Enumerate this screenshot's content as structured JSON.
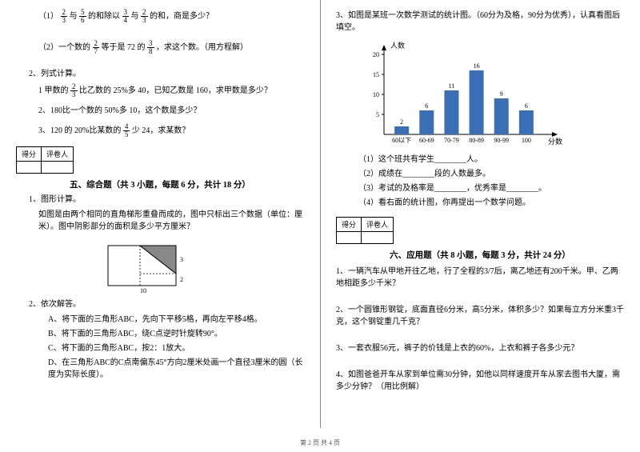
{
  "left": {
    "q1_1": "（1）",
    "q1_1_text_a": "与",
    "q1_1_text_b": "的和除以",
    "q1_1_text_c": "与",
    "q1_1_text_d": "的和，商是多少？",
    "q1_2": "（2）一个数的",
    "q1_2_b": "等于是 72 的",
    "q1_2_c": "，求这个数。（用方程解）",
    "q2": "2、列式计算。",
    "q2_1a": "1 甲数的",
    "q2_1b": "比乙数的 25%多 40，已知乙数是 160，求甲数是多少？",
    "q2_2": "2、180比一个数的 50%多 10，这个数是多少？",
    "q2_3a": "3、120 的 20%比某数的",
    "q2_3b": "少 24，求某数？",
    "section5_title": "五、综合题（共 3 小题，每题 6 分，共计 18 分）",
    "s5_q1": "1、图形计算。",
    "s5_q1_desc": "如图是由两个相同的直角梯形重叠而成的，图中只标出三个数据（单位：厘米）。图中阴影部分的面积是多少平方厘米？",
    "s5_q2": "2、依次解答。",
    "s5_q2_a": "A、将下面的三角形ABC，先向下平移5格，再向左平移4格。",
    "s5_q2_b": "B、将下面的三角形ABC，绕C点逆时针旋转90°。",
    "s5_q2_c": "C、将下面的三角形ABC，按2：1放大。",
    "s5_q2_d": "D、在三角形ABC的C点南偏东45°方向2厘米处画一个直径3厘米的圆（长度为实际长度）。",
    "trap": {
      "l1": "3",
      "l2": "2",
      "l3": "10"
    },
    "score_labels": {
      "score": "得分",
      "marker": "评卷人"
    },
    "fracs": {
      "a": {
        "n": "2",
        "d": "3"
      },
      "b": {
        "n": "5",
        "d": "6"
      },
      "c": {
        "n": "3",
        "d": "4"
      },
      "d": {
        "n": "2",
        "d": "3"
      },
      "e": {
        "n": "2",
        "d": "7"
      },
      "f": {
        "n": "3",
        "d": "8"
      },
      "g": {
        "n": "2",
        "d": "3"
      },
      "h": {
        "n": "4",
        "d": "5"
      }
    }
  },
  "right": {
    "q3": "3、如图是某班一次数学测试的统计图。（60分为及格，90分为优秀），认真看图后填空。",
    "chart": {
      "ylabel": "人数",
      "xlabel": "分数",
      "ymax": 20,
      "ytick": 5,
      "categories": [
        "60以下",
        "60-69",
        "70-79",
        "80-89",
        "90-99",
        "100"
      ],
      "values": [
        2,
        6,
        11,
        16,
        9,
        6
      ],
      "bar_color": "#3a6eb5",
      "axis_color": "#000000"
    },
    "q3_1": "（1）这个班共有学生________人。",
    "q3_2": "（2）成绩在________段的人数最多。",
    "q3_3": "（3）考试的及格率是________，优秀率是________。",
    "q3_4": "（4）看右面的统计图，你再提出一个数学问题。",
    "section6_title": "六、应用题（共 8 小题，每题 3 分，共计 24 分）",
    "s6_q1": "1、一辆汽车从甲地开往乙地，行了全程的3/7后，离乙地还有200千米。甲、乙两地相距多少千米？",
    "s6_q2": "2、一个圆锥形钢锭，底面直径6分米，高5分米，体积多少？如果每立方分米重3千克，这个钢锭重几千克？",
    "s6_q3": "3、一套衣服56元，裤子的价钱是上衣的60%，上衣和裤子各多少元？",
    "s6_q4": "4、如图爸爸开车从家到单位需30分钟，如他以同样速度开车从家去图书大厦，需多少分钟？（用比例解）"
  },
  "footer": "第 2 页 共 4 页"
}
